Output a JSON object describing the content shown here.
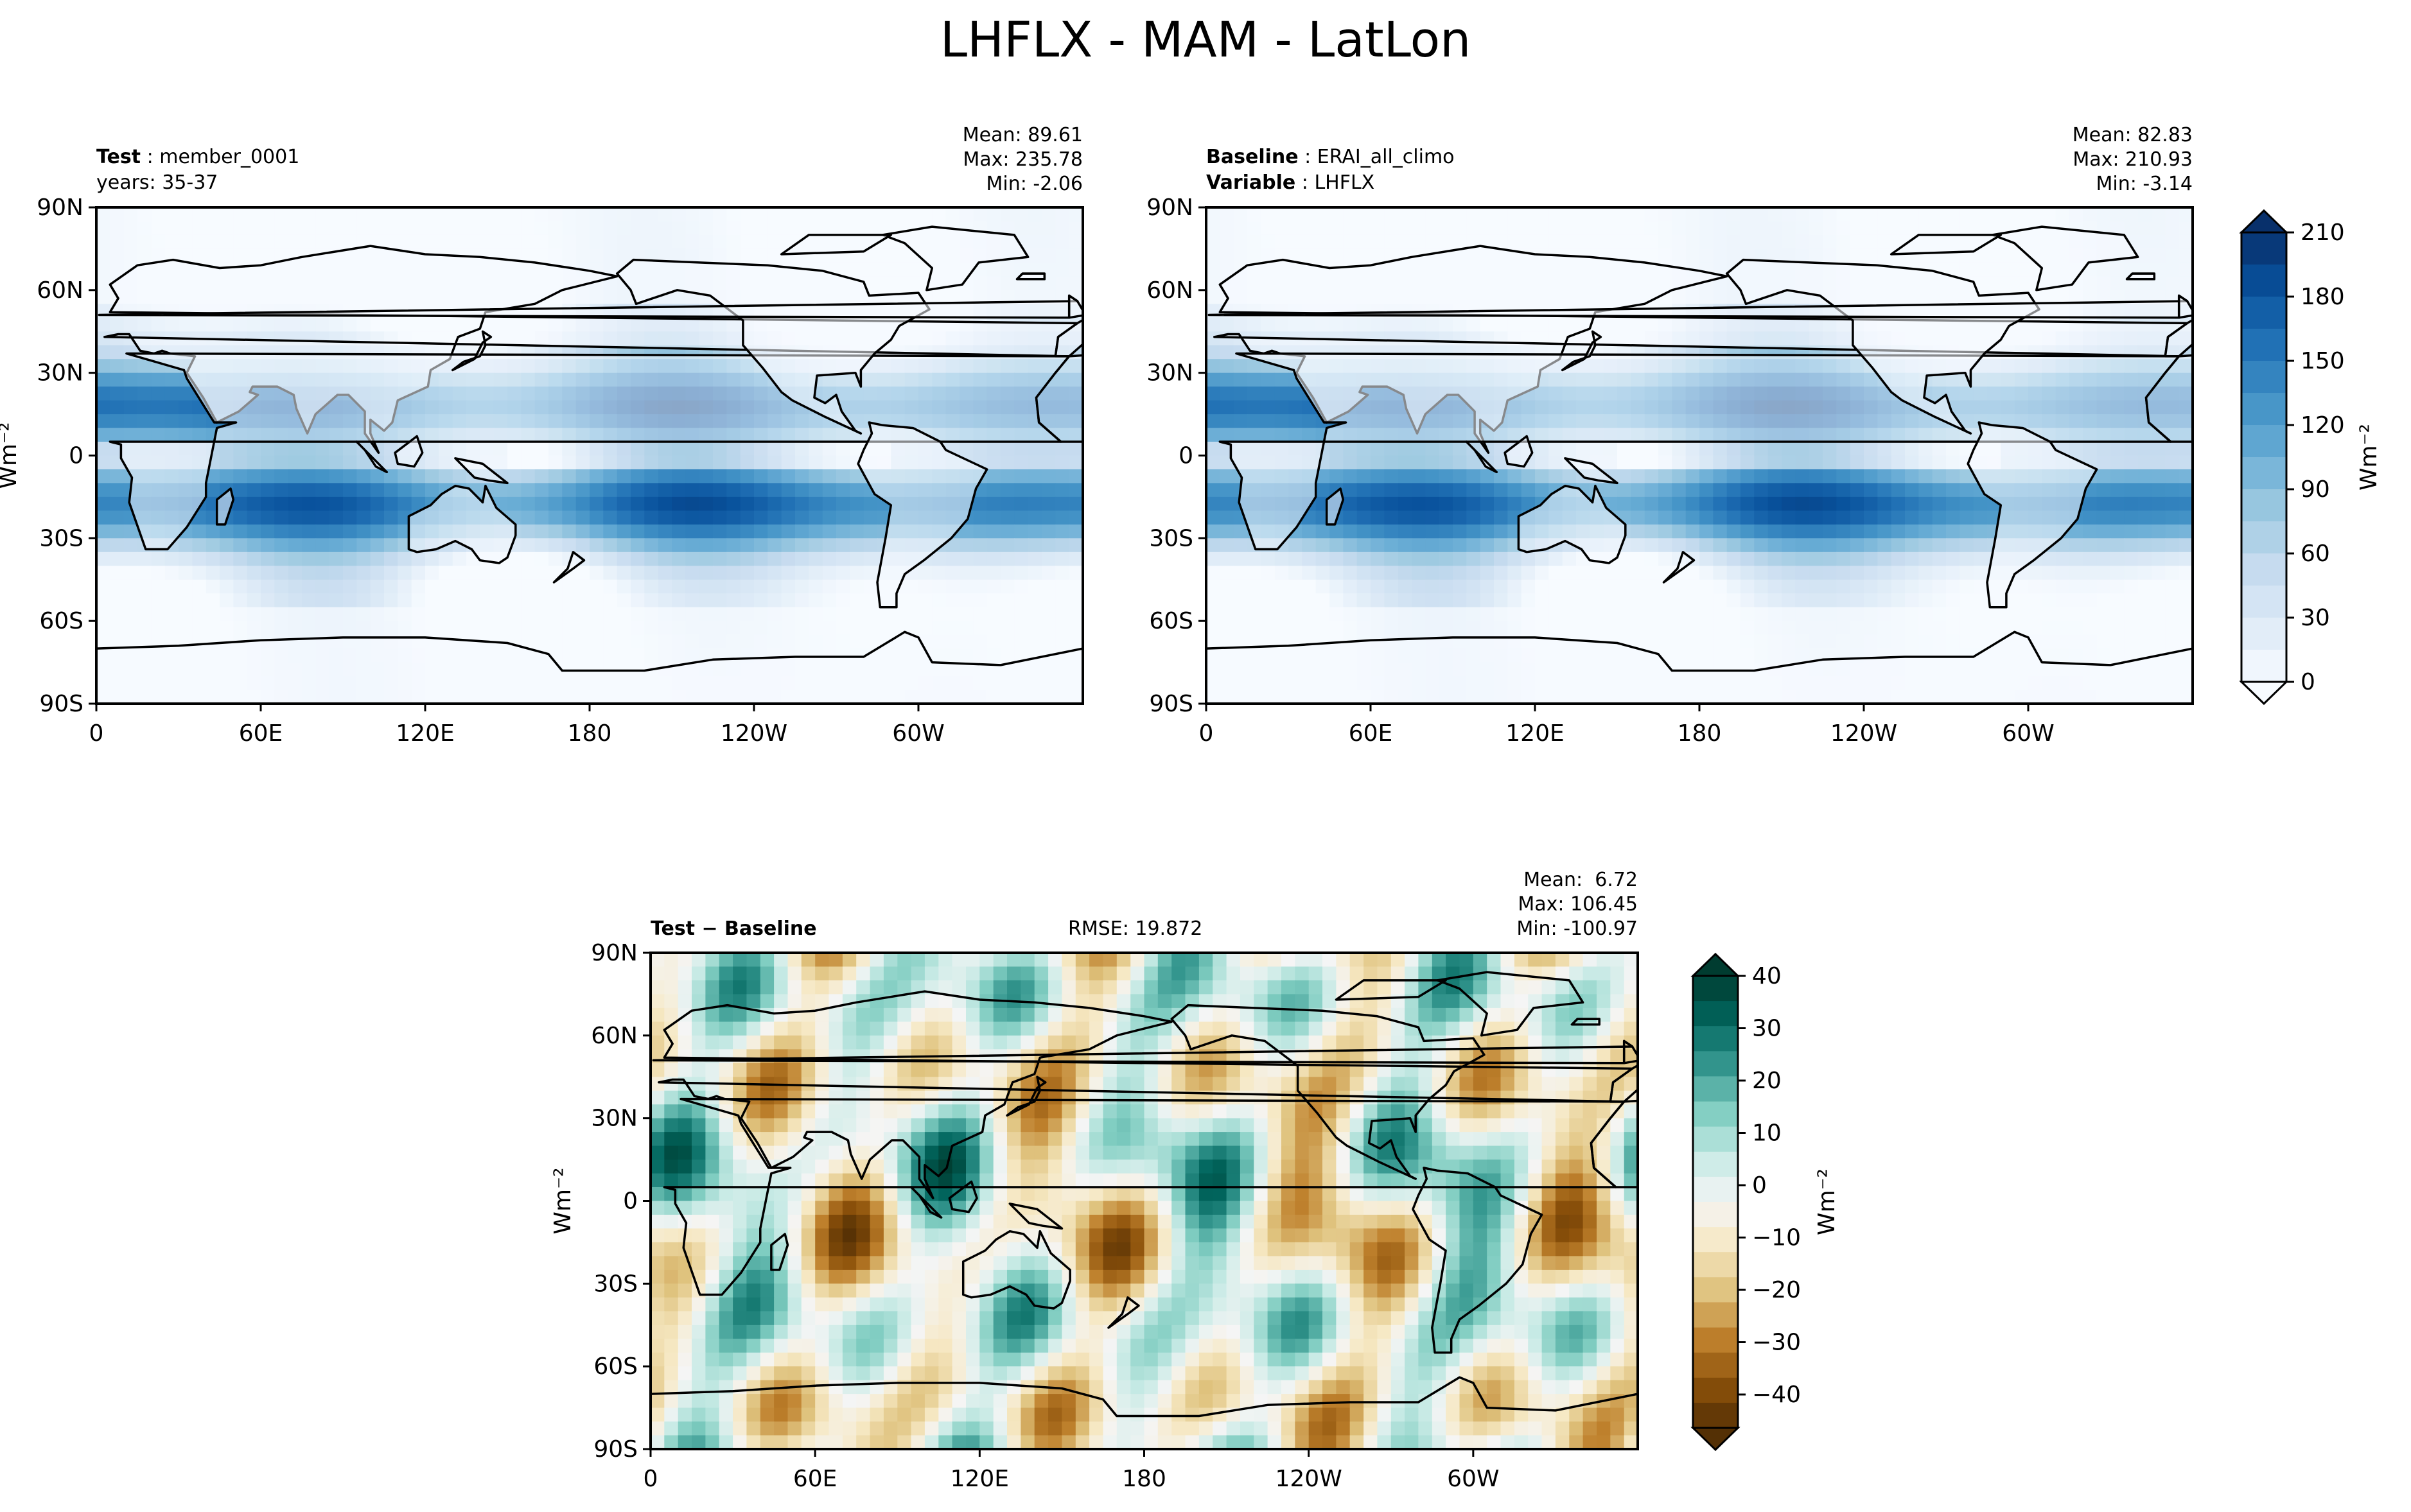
{
  "figure_title": "LHFLX - MAM - LatLon",
  "chart_data": [
    {
      "type": "heatmap",
      "panel": "test",
      "label_left_bold": "Test",
      "label_left_value": "member_0001",
      "label_left_line2": "years: 35-37",
      "stats": {
        "mean": "Mean: 89.61",
        "max": "Max: 235.78",
        "min": "Min: -2.06"
      },
      "lat_ticks": [
        "90N",
        "60N",
        "30N",
        "0",
        "30S",
        "60S",
        "90S"
      ],
      "lon_ticks": [
        "0",
        "60E",
        "120E",
        "180",
        "120W",
        "60W"
      ],
      "xlim": [
        0,
        360
      ],
      "ylim": [
        -90,
        90
      ],
      "colormap": "Blues",
      "value_range": [
        0,
        210
      ],
      "ylabel": "Wm⁻²"
    },
    {
      "type": "heatmap",
      "panel": "baseline",
      "label_left_bold": "Baseline",
      "label_left_value": "ERAI_all_climo",
      "label_left2_bold": "Variable",
      "label_left2_value": "LHFLX",
      "stats": {
        "mean": "Mean: 82.83",
        "max": "Max: 210.93",
        "min": "Min: -3.14"
      },
      "lat_ticks": [
        "90N",
        "60N",
        "30N",
        "0",
        "30S",
        "60S",
        "90S"
      ],
      "lon_ticks": [
        "0",
        "60E",
        "120E",
        "180",
        "120W",
        "60W"
      ],
      "xlim": [
        0,
        360
      ],
      "ylim": [
        -90,
        90
      ],
      "colormap": "Blues",
      "value_range": [
        0,
        210
      ],
      "colorbar_ticks": [
        "0",
        "30",
        "60",
        "90",
        "120",
        "150",
        "180",
        "210"
      ],
      "colorbar_label": "Wm⁻²"
    },
    {
      "type": "heatmap",
      "panel": "difference",
      "label_left_bold": "Test − Baseline",
      "rmse": "RMSE: 19.872",
      "stats": {
        "mean": "Mean:  6.72",
        "max": "Max: 106.45",
        "min": "Min: -100.97"
      },
      "lat_ticks": [
        "90N",
        "60N",
        "30N",
        "0",
        "30S",
        "60S",
        "90S"
      ],
      "lon_ticks": [
        "0",
        "60E",
        "120E",
        "180",
        "120W",
        "60W"
      ],
      "xlim": [
        0,
        360
      ],
      "ylim": [
        -90,
        90
      ],
      "colormap": "BrBG",
      "value_range": [
        -45,
        45
      ],
      "ylabel": "Wm⁻²",
      "colorbar_ticks": [
        "40",
        "30",
        "20",
        "10",
        "0",
        "−10",
        "−20",
        "−30",
        "−40"
      ],
      "colorbar_label": "Wm⁻²"
    }
  ],
  "colors": {
    "blues": [
      "#f7fbff",
      "#deebf7",
      "#c6dbef",
      "#9ecae1",
      "#6baed6",
      "#4292c6",
      "#2171b5",
      "#08519c",
      "#08306b"
    ],
    "brbg": [
      "#543005",
      "#8c510a",
      "#bf812d",
      "#dfc27d",
      "#f6e8c3",
      "#f5f5f5",
      "#c7eae5",
      "#80cdc1",
      "#35978f",
      "#01665e",
      "#003c30"
    ]
  }
}
